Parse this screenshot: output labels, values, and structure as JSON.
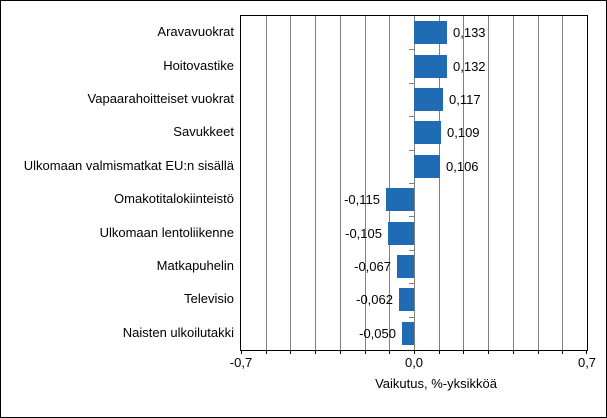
{
  "chart_data": {
    "type": "bar",
    "orientation": "horizontal",
    "xlabel": "Vaikutus, %-yksikköä",
    "xlim": [
      -0.7,
      0.7
    ],
    "grid_step": 0.1,
    "grid_on": true,
    "x_ticks": [
      {
        "value": -0.7,
        "label": "-0,7"
      },
      {
        "value": 0.0,
        "label": "0,0"
      },
      {
        "value": 0.7,
        "label": "0,7"
      }
    ],
    "categories": [
      "Aravavuokrat",
      "Hoitovastike",
      "Vapaarahoitteiset vuokrat",
      "Savukkeet",
      "Ulkomaan valmismatkat EU:n sisällä",
      "Omakotitalokiinteistö",
      "Ulkomaan lentoliikenne",
      "Matkapuhelin",
      "Televisio",
      "Naisten ulkoilutakki"
    ],
    "values": [
      0.133,
      0.132,
      0.117,
      0.109,
      0.106,
      -0.115,
      -0.105,
      -0.067,
      -0.062,
      -0.05
    ],
    "value_labels": [
      "0,133",
      "0,132",
      "0,117",
      "0,109",
      "0,106",
      "-0,115",
      "-0,105",
      "-0,067",
      "-0,062",
      "-0,050"
    ],
    "colors": {
      "bar": "#1f6cb4",
      "grid": "#808080",
      "axis": "#000000",
      "background": "#ffffff"
    }
  }
}
